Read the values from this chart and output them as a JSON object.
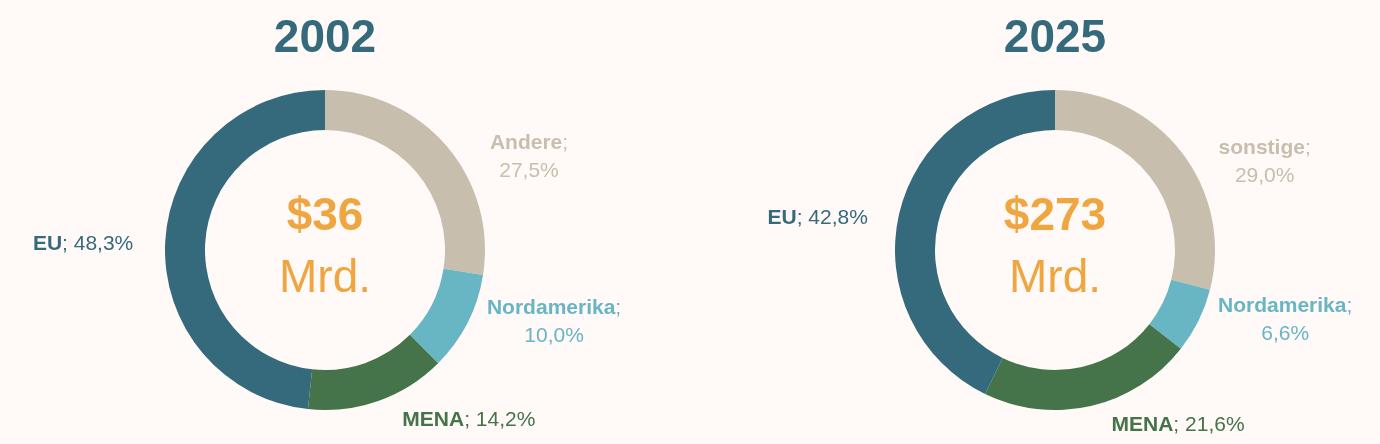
{
  "chart_data": [
    {
      "type": "donut",
      "title": "2002",
      "categories": [
        "Andere",
        "Nordamerika",
        "MENA",
        "EU"
      ],
      "values": [
        27.5,
        10.0,
        14.2,
        48.3
      ],
      "value_labels": [
        "; 27,5%",
        "; 10,0%",
        "; 14,2%",
        "; 48,3%"
      ],
      "colors": [
        "#c8beae",
        "#68b5c4",
        "#45744a",
        "#35697c"
      ],
      "annotations": [
        "$36",
        "Mrd."
      ]
    },
    {
      "type": "donut",
      "title": "2025",
      "categories": [
        "sonstige",
        "Nordamerika",
        "MENA",
        "EU"
      ],
      "values": [
        29.0,
        6.6,
        21.6,
        42.8
      ],
      "value_labels": [
        "; 29,0%",
        "; 6,6%",
        "; 21,6%",
        "; 42,8%"
      ],
      "colors": [
        "#c8beae",
        "#68b5c4",
        "#45744a",
        "#35697c"
      ],
      "annotations": [
        "$273",
        "Mrd."
      ]
    }
  ]
}
